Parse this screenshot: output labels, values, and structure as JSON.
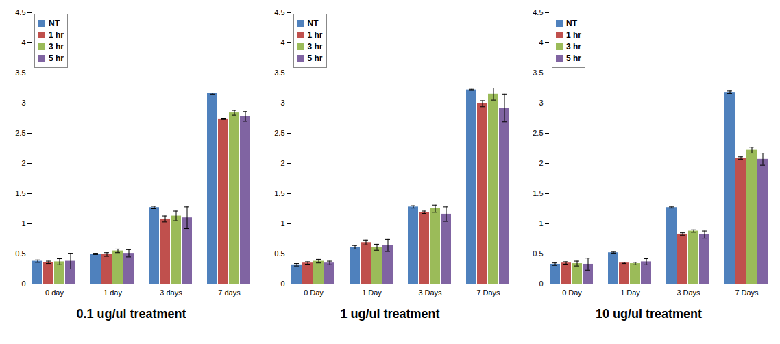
{
  "chart_data": [
    {
      "type": "bar",
      "title": "0.1 ug/ul treatment",
      "categories": [
        "0 day",
        "1 day",
        "3 days",
        "7 days"
      ],
      "series": [
        {
          "name": "NT",
          "color": "#4f81bd",
          "values": [
            0.38,
            0.5,
            1.27,
            3.16
          ],
          "errors": [
            0.02,
            0.01,
            0.02,
            0.01
          ]
        },
        {
          "name": "1 hr",
          "color": "#c0504d",
          "values": [
            0.36,
            0.49,
            1.08,
            2.74
          ],
          "errors": [
            0.02,
            0.03,
            0.05,
            0.01
          ]
        },
        {
          "name": "3 hr",
          "color": "#9bbb59",
          "values": [
            0.37,
            0.55,
            1.13,
            2.84
          ],
          "errors": [
            0.05,
            0.03,
            0.08,
            0.04
          ]
        },
        {
          "name": "5 hr",
          "color": "#8064a2",
          "values": [
            0.38,
            0.51,
            1.1,
            2.78
          ],
          "errors": [
            0.13,
            0.06,
            0.18,
            0.08
          ]
        }
      ],
      "ylim": [
        0,
        4.5
      ],
      "yticks": [
        0,
        0.5,
        1,
        1.5,
        2,
        2.5,
        3,
        3.5,
        4,
        4.5
      ],
      "grid": false,
      "legend": "top-left"
    },
    {
      "type": "bar",
      "title": "1 ug/ul treatment",
      "categories": [
        "0 Day",
        "1 Day",
        "3 Days",
        "7 Days"
      ],
      "series": [
        {
          "name": "NT",
          "color": "#4f81bd",
          "values": [
            0.32,
            0.61,
            1.28,
            3.22
          ],
          "errors": [
            0.02,
            0.03,
            0.02,
            0.01
          ]
        },
        {
          "name": "1 hr",
          "color": "#c0504d",
          "values": [
            0.35,
            0.69,
            1.19,
            2.99
          ],
          "errors": [
            0.02,
            0.04,
            0.02,
            0.05
          ]
        },
        {
          "name": "3 hr",
          "color": "#9bbb59",
          "values": [
            0.38,
            0.61,
            1.25,
            3.15
          ],
          "errors": [
            0.03,
            0.05,
            0.06,
            0.1
          ]
        },
        {
          "name": "5 hr",
          "color": "#8064a2",
          "values": [
            0.35,
            0.64,
            1.16,
            2.92
          ],
          "errors": [
            0.03,
            0.1,
            0.12,
            0.23
          ]
        }
      ],
      "ylim": [
        0,
        4.5
      ],
      "yticks": [
        0,
        0.5,
        1,
        1.5,
        2,
        2.5,
        3,
        3.5,
        4,
        4.5
      ],
      "grid": false,
      "legend": "top-left"
    },
    {
      "type": "bar",
      "title": "10 ug/ul treatment",
      "categories": [
        "0 Day",
        "1 Day",
        "3 Days",
        "7 Days"
      ],
      "series": [
        {
          "name": "NT",
          "color": "#4f81bd",
          "values": [
            0.33,
            0.52,
            1.27,
            3.18
          ],
          "errors": [
            0.02,
            0.01,
            0.01,
            0.02
          ]
        },
        {
          "name": "1 hr",
          "color": "#c0504d",
          "values": [
            0.35,
            0.35,
            0.83,
            2.09
          ],
          "errors": [
            0.02,
            0.01,
            0.02,
            0.02
          ]
        },
        {
          "name": "3 hr",
          "color": "#9bbb59",
          "values": [
            0.34,
            0.34,
            0.88,
            2.22
          ],
          "errors": [
            0.04,
            0.02,
            0.02,
            0.05
          ]
        },
        {
          "name": "5 hr",
          "color": "#8064a2",
          "values": [
            0.33,
            0.37,
            0.82,
            2.07
          ],
          "errors": [
            0.1,
            0.05,
            0.06,
            0.1
          ]
        }
      ],
      "ylim": [
        0,
        4.5
      ],
      "yticks": [
        0,
        0.5,
        1,
        1.5,
        2,
        2.5,
        3,
        3.5,
        4,
        4.5
      ],
      "grid": false,
      "legend": "top-left"
    }
  ]
}
